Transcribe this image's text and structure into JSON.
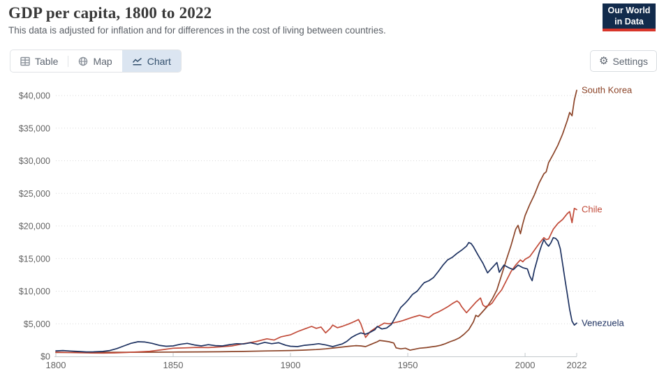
{
  "header": {
    "title": "GDP per capita, 1800 to 2022",
    "subtitle": "This data is adjusted for inflation and for differences in the cost of living between countries.",
    "logo": {
      "line1": "Our World",
      "line2": "in Data"
    }
  },
  "toolbar": {
    "tabs": [
      {
        "label": "Table",
        "active": false
      },
      {
        "label": "Map",
        "active": false
      },
      {
        "label": "Chart",
        "active": true
      }
    ],
    "settings_label": "Settings"
  },
  "colors": {
    "active_tab_bg": "#dbe5f1",
    "active_tab_text": "#33506d",
    "inactive_tab_text": "#5d6570",
    "logo_navy": "#122b4c",
    "logo_red": "#d8352a",
    "gridline": "#d9d9d9",
    "axis_line": "#c3c8cc",
    "axis_text": "#636363"
  },
  "chart_data": {
    "type": "line",
    "title": "GDP per capita, 1800 to 2022",
    "xlabel": "",
    "ylabel": "",
    "xlim": [
      1800,
      2022
    ],
    "ylim": [
      0,
      40000
    ],
    "grid": "horizontal dotted",
    "legend_position": "right-end-of-line",
    "x_ticks": [
      1800,
      1850,
      1900,
      1950,
      2000,
      2022
    ],
    "y_tick_values": [
      0,
      5000,
      10000,
      15000,
      20000,
      25000,
      30000,
      35000,
      40000
    ],
    "y_ticks": [
      "$0",
      "$5,000",
      "$10,000",
      "$15,000",
      "$20,000",
      "$25,000",
      "$30,000",
      "$35,000",
      "$40,000"
    ],
    "series": [
      {
        "name": "South Korea",
        "color": "#8b4327",
        "points": [
          [
            1800,
            600
          ],
          [
            1810,
            610
          ],
          [
            1820,
            620
          ],
          [
            1830,
            630
          ],
          [
            1840,
            640
          ],
          [
            1850,
            660
          ],
          [
            1860,
            680
          ],
          [
            1870,
            710
          ],
          [
            1880,
            760
          ],
          [
            1890,
            830
          ],
          [
            1900,
            900
          ],
          [
            1905,
            950
          ],
          [
            1911,
            1050
          ],
          [
            1915,
            1150
          ],
          [
            1920,
            1350
          ],
          [
            1925,
            1550
          ],
          [
            1928,
            1650
          ],
          [
            1930,
            1600
          ],
          [
            1932,
            1500
          ],
          [
            1935,
            1950
          ],
          [
            1937,
            2250
          ],
          [
            1938,
            2450
          ],
          [
            1940,
            2350
          ],
          [
            1942,
            2250
          ],
          [
            1944,
            2050
          ],
          [
            1945,
            1300
          ],
          [
            1947,
            1150
          ],
          [
            1949,
            1250
          ],
          [
            1951,
            950
          ],
          [
            1953,
            1100
          ],
          [
            1955,
            1250
          ],
          [
            1958,
            1350
          ],
          [
            1960,
            1450
          ],
          [
            1962,
            1550
          ],
          [
            1964,
            1700
          ],
          [
            1966,
            1950
          ],
          [
            1968,
            2250
          ],
          [
            1970,
            2500
          ],
          [
            1972,
            2850
          ],
          [
            1974,
            3400
          ],
          [
            1976,
            4100
          ],
          [
            1978,
            5300
          ],
          [
            1979,
            6300
          ],
          [
            1980,
            6100
          ],
          [
            1982,
            6900
          ],
          [
            1984,
            7700
          ],
          [
            1986,
            8800
          ],
          [
            1988,
            10200
          ],
          [
            1990,
            12500
          ],
          [
            1992,
            14800
          ],
          [
            1994,
            17000
          ],
          [
            1996,
            19500
          ],
          [
            1997,
            20100
          ],
          [
            1998,
            18800
          ],
          [
            1999,
            20300
          ],
          [
            2000,
            21600
          ],
          [
            2002,
            23300
          ],
          [
            2004,
            24800
          ],
          [
            2006,
            26600
          ],
          [
            2008,
            28000
          ],
          [
            2009,
            28300
          ],
          [
            2010,
            29700
          ],
          [
            2012,
            31000
          ],
          [
            2014,
            32400
          ],
          [
            2016,
            34100
          ],
          [
            2018,
            36200
          ],
          [
            2019,
            37400
          ],
          [
            2020,
            36900
          ],
          [
            2021,
            39300
          ],
          [
            2022,
            40800
          ]
        ]
      },
      {
        "name": "Chile",
        "color": "#c14a38",
        "points": [
          [
            1800,
            640
          ],
          [
            1805,
            600
          ],
          [
            1810,
            560
          ],
          [
            1815,
            520
          ],
          [
            1820,
            500
          ],
          [
            1825,
            540
          ],
          [
            1830,
            600
          ],
          [
            1835,
            680
          ],
          [
            1840,
            780
          ],
          [
            1845,
            1000
          ],
          [
            1850,
            1250
          ],
          [
            1855,
            1300
          ],
          [
            1860,
            1380
          ],
          [
            1865,
            1350
          ],
          [
            1870,
            1450
          ],
          [
            1875,
            1600
          ],
          [
            1880,
            1950
          ],
          [
            1885,
            2250
          ],
          [
            1890,
            2700
          ],
          [
            1893,
            2500
          ],
          [
            1896,
            3000
          ],
          [
            1900,
            3300
          ],
          [
            1903,
            3800
          ],
          [
            1906,
            4200
          ],
          [
            1909,
            4600
          ],
          [
            1911,
            4300
          ],
          [
            1913,
            4500
          ],
          [
            1915,
            3600
          ],
          [
            1917,
            4300
          ],
          [
            1918,
            4800
          ],
          [
            1920,
            4400
          ],
          [
            1922,
            4600
          ],
          [
            1925,
            5000
          ],
          [
            1927,
            5300
          ],
          [
            1929,
            5650
          ],
          [
            1930,
            5000
          ],
          [
            1932,
            2900
          ],
          [
            1934,
            3800
          ],
          [
            1936,
            4300
          ],
          [
            1938,
            4700
          ],
          [
            1940,
            5100
          ],
          [
            1942,
            5000
          ],
          [
            1944,
            5150
          ],
          [
            1946,
            5300
          ],
          [
            1948,
            5500
          ],
          [
            1950,
            5750
          ],
          [
            1952,
            6000
          ],
          [
            1954,
            6200
          ],
          [
            1955,
            6300
          ],
          [
            1957,
            6100
          ],
          [
            1959,
            5950
          ],
          [
            1961,
            6500
          ],
          [
            1963,
            6800
          ],
          [
            1965,
            7200
          ],
          [
            1967,
            7600
          ],
          [
            1969,
            8100
          ],
          [
            1971,
            8500
          ],
          [
            1972,
            8200
          ],
          [
            1973,
            7600
          ],
          [
            1975,
            6700
          ],
          [
            1977,
            7500
          ],
          [
            1979,
            8300
          ],
          [
            1981,
            8950
          ],
          [
            1982,
            7900
          ],
          [
            1983,
            7600
          ],
          [
            1985,
            7900
          ],
          [
            1986,
            8200
          ],
          [
            1988,
            9300
          ],
          [
            1990,
            10200
          ],
          [
            1992,
            11600
          ],
          [
            1994,
            13000
          ],
          [
            1996,
            14000
          ],
          [
            1998,
            14800
          ],
          [
            1999,
            14500
          ],
          [
            2000,
            14900
          ],
          [
            2002,
            15300
          ],
          [
            2004,
            16300
          ],
          [
            2006,
            17300
          ],
          [
            2008,
            18200
          ],
          [
            2009,
            17900
          ],
          [
            2010,
            18000
          ],
          [
            2012,
            19500
          ],
          [
            2014,
            20400
          ],
          [
            2016,
            21000
          ],
          [
            2018,
            21900
          ],
          [
            2019,
            22200
          ],
          [
            2020,
            20500
          ],
          [
            2021,
            22700
          ],
          [
            2022,
            22500
          ]
        ]
      },
      {
        "name": "Venezuela",
        "color": "#1d3160",
        "points": [
          [
            1800,
            850
          ],
          [
            1803,
            900
          ],
          [
            1806,
            820
          ],
          [
            1810,
            750
          ],
          [
            1813,
            680
          ],
          [
            1816,
            700
          ],
          [
            1820,
            760
          ],
          [
            1823,
            900
          ],
          [
            1826,
            1200
          ],
          [
            1829,
            1600
          ],
          [
            1832,
            2000
          ],
          [
            1835,
            2250
          ],
          [
            1838,
            2200
          ],
          [
            1841,
            2000
          ],
          [
            1844,
            1700
          ],
          [
            1847,
            1550
          ],
          [
            1850,
            1600
          ],
          [
            1853,
            1850
          ],
          [
            1856,
            2000
          ],
          [
            1859,
            1750
          ],
          [
            1862,
            1600
          ],
          [
            1865,
            1800
          ],
          [
            1868,
            1650
          ],
          [
            1871,
            1600
          ],
          [
            1874,
            1800
          ],
          [
            1877,
            1950
          ],
          [
            1880,
            1900
          ],
          [
            1883,
            2100
          ],
          [
            1886,
            1850
          ],
          [
            1889,
            2150
          ],
          [
            1892,
            1950
          ],
          [
            1895,
            2100
          ],
          [
            1898,
            1700
          ],
          [
            1900,
            1550
          ],
          [
            1903,
            1500
          ],
          [
            1906,
            1700
          ],
          [
            1909,
            1800
          ],
          [
            1912,
            1950
          ],
          [
            1915,
            1750
          ],
          [
            1918,
            1500
          ],
          [
            1920,
            1700
          ],
          [
            1922,
            1900
          ],
          [
            1924,
            2300
          ],
          [
            1926,
            2900
          ],
          [
            1928,
            3300
          ],
          [
            1930,
            3600
          ],
          [
            1932,
            3400
          ],
          [
            1934,
            3700
          ],
          [
            1936,
            4100
          ],
          [
            1937,
            4600
          ],
          [
            1939,
            4200
          ],
          [
            1941,
            4350
          ],
          [
            1943,
            4900
          ],
          [
            1945,
            6200
          ],
          [
            1947,
            7500
          ],
          [
            1949,
            8200
          ],
          [
            1950,
            8600
          ],
          [
            1952,
            9500
          ],
          [
            1954,
            10000
          ],
          [
            1956,
            10900
          ],
          [
            1957,
            11300
          ],
          [
            1959,
            11600
          ],
          [
            1961,
            12100
          ],
          [
            1963,
            13000
          ],
          [
            1965,
            14000
          ],
          [
            1967,
            14800
          ],
          [
            1969,
            15200
          ],
          [
            1971,
            15800
          ],
          [
            1973,
            16300
          ],
          [
            1975,
            16900
          ],
          [
            1976,
            17450
          ],
          [
            1977,
            17300
          ],
          [
            1978,
            16800
          ],
          [
            1980,
            15500
          ],
          [
            1982,
            14300
          ],
          [
            1984,
            12800
          ],
          [
            1986,
            13600
          ],
          [
            1988,
            14400
          ],
          [
            1989,
            12900
          ],
          [
            1991,
            14000
          ],
          [
            1993,
            13600
          ],
          [
            1995,
            13300
          ],
          [
            1997,
            14000
          ],
          [
            1999,
            13600
          ],
          [
            2001,
            13400
          ],
          [
            2002,
            12300
          ],
          [
            2003,
            11600
          ],
          [
            2004,
            13300
          ],
          [
            2005,
            14600
          ],
          [
            2006,
            15900
          ],
          [
            2007,
            17000
          ],
          [
            2008,
            17900
          ],
          [
            2009,
            17300
          ],
          [
            2010,
            16900
          ],
          [
            2011,
            17400
          ],
          [
            2012,
            18200
          ],
          [
            2013,
            18100
          ],
          [
            2014,
            17700
          ],
          [
            2015,
            16500
          ],
          [
            2016,
            14200
          ],
          [
            2017,
            11800
          ],
          [
            2018,
            9500
          ],
          [
            2019,
            7200
          ],
          [
            2020,
            5400
          ],
          [
            2021,
            4800
          ],
          [
            2022,
            5100
          ]
        ]
      }
    ]
  }
}
